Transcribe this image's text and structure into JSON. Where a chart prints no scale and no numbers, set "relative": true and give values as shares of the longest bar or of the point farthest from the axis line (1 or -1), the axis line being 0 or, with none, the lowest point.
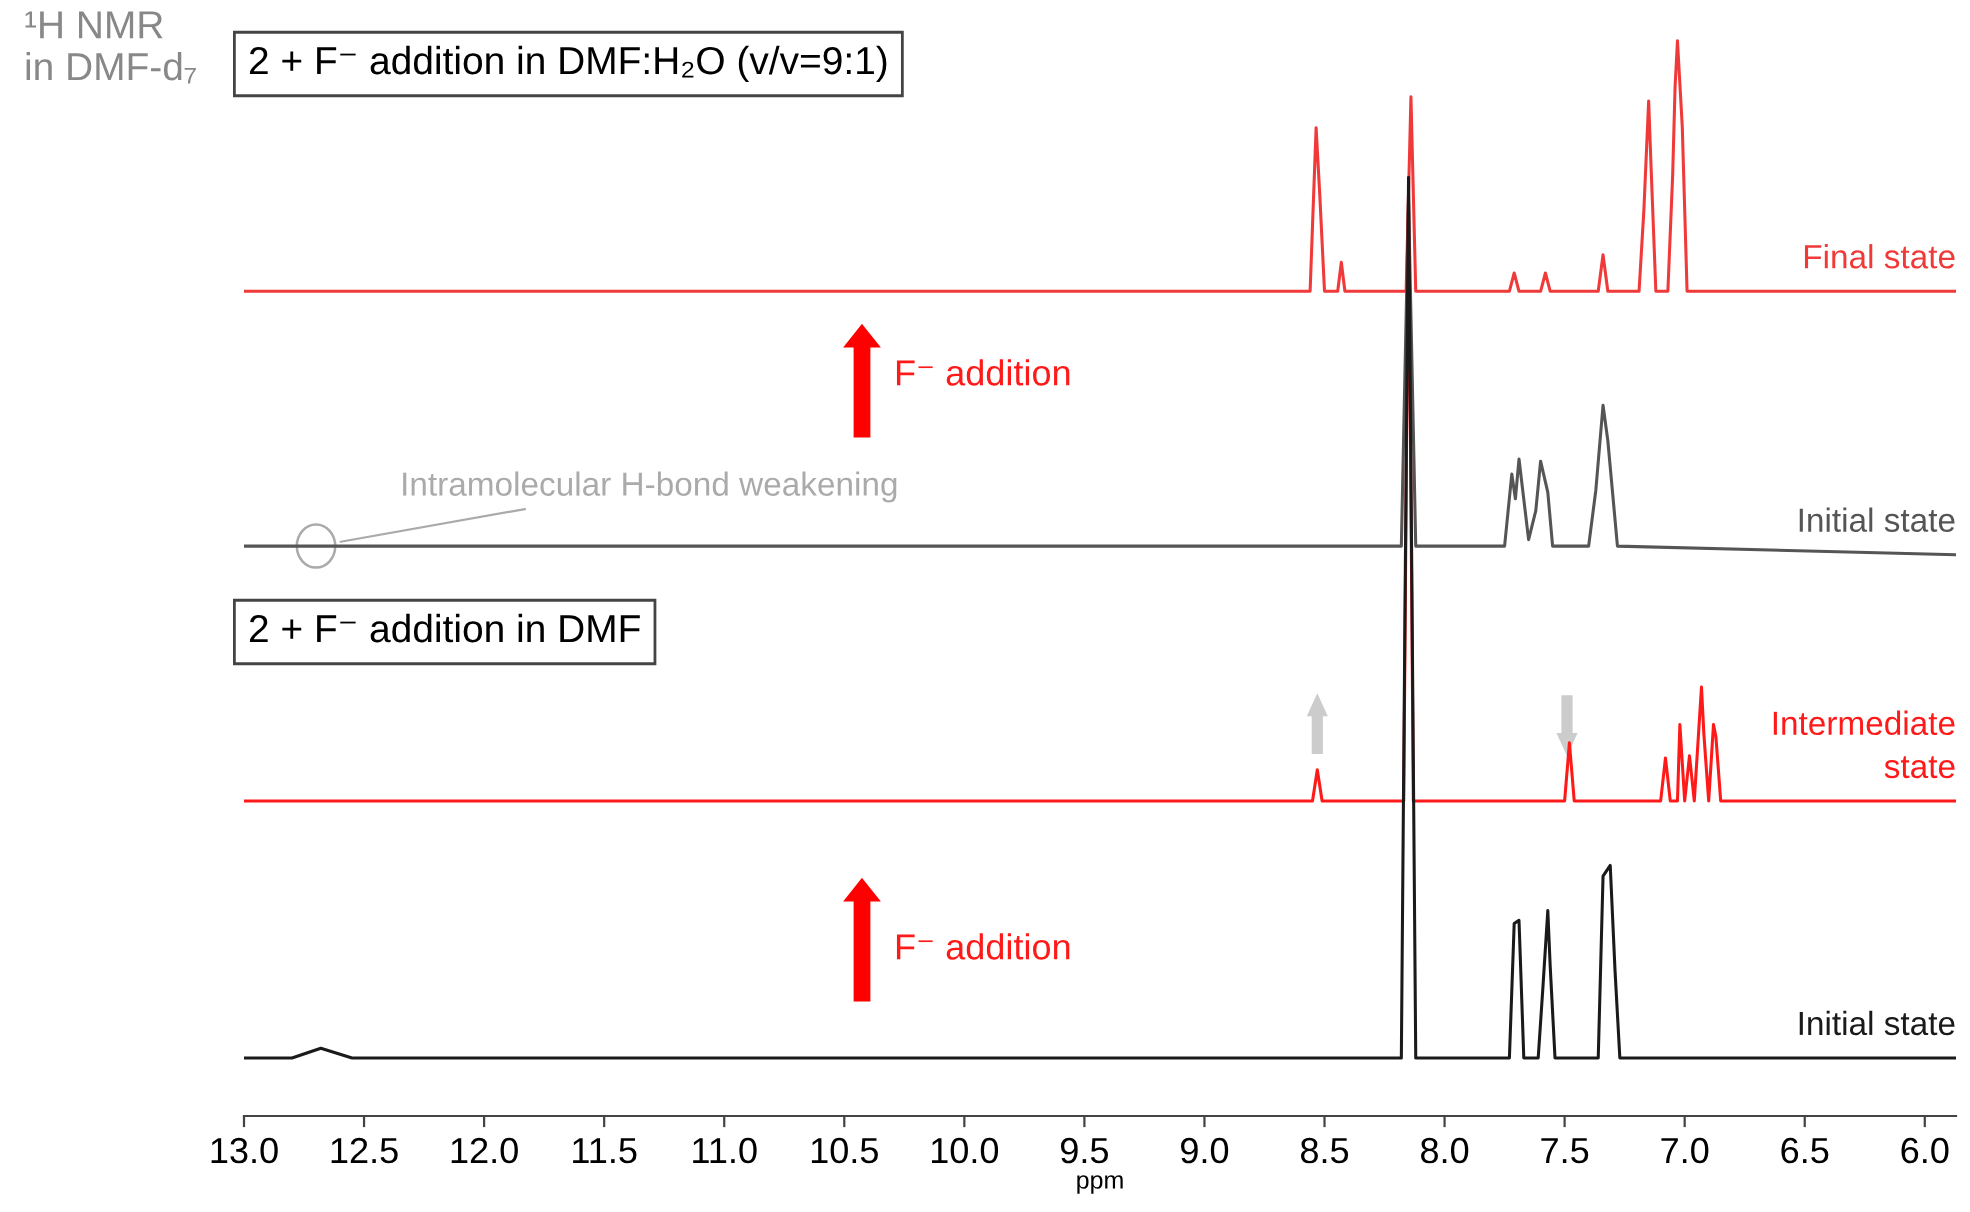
{
  "chart_data": {
    "type": "line",
    "relative": true,
    "xlabel": "ppm",
    "xlim": [
      13.0,
      5.87
    ],
    "xticks": [
      {
        "value": 13,
        "label": "13.0"
      },
      12.5,
      {
        "value": 12,
        "label": "12.0"
      },
      11.5,
      {
        "value": 11,
        "label": "11.0"
      },
      10.5,
      {
        "value": 10,
        "label": "10.0"
      },
      9.5,
      {
        "value": 9,
        "label": "9.0"
      },
      8.5,
      {
        "value": 8,
        "label": "8.0"
      },
      7.5,
      {
        "value": 7,
        "label": "7.0"
      },
      6.5,
      {
        "value": 6,
        "label": "6.0"
      }
    ],
    "grid": false,
    "marker": "none",
    "line_style": "solid",
    "series": [
      {
        "name": "Final state",
        "color": "#f03a3a",
        "x": [
          13.0,
          8.56,
          8.535,
          8.52,
          8.5,
          8.445,
          8.43,
          8.415,
          8.16,
          8.14,
          8.12,
          7.73,
          7.71,
          7.69,
          7.6,
          7.58,
          7.56,
          7.36,
          7.34,
          7.32,
          7.19,
          7.17,
          7.15,
          7.14,
          7.12,
          7.07,
          7.05,
          7.04,
          7.03,
          7.01,
          6.99,
          5.87
        ],
        "values": [
          0.767,
          0.767,
          0.919,
          0.858,
          0.767,
          0.767,
          0.794,
          0.767,
          0.767,
          0.948,
          0.767,
          0.767,
          0.784,
          0.767,
          0.767,
          0.784,
          0.767,
          0.767,
          0.801,
          0.767,
          0.767,
          0.842,
          0.944,
          0.883,
          0.767,
          0.767,
          0.875,
          0.957,
          1.0,
          0.92,
          0.767,
          0.767
        ]
      },
      {
        "name": "Initial state",
        "color": "#555555",
        "x": [
          13.0,
          8.18,
          8.15,
          8.12,
          7.75,
          7.72,
          7.705,
          7.69,
          7.65,
          7.62,
          7.6,
          7.57,
          7.55,
          7.4,
          7.37,
          7.34,
          7.32,
          7.28,
          5.87
        ],
        "values": [
          0.53,
          0.53,
          0.851,
          0.53,
          0.53,
          0.597,
          0.574,
          0.611,
          0.536,
          0.563,
          0.609,
          0.58,
          0.53,
          0.53,
          0.582,
          0.661,
          0.628,
          0.53,
          0.522
        ]
      },
      {
        "name": "Intermediate\nstate",
        "color": "#ff1a1a",
        "x": [
          13.0,
          8.55,
          8.53,
          8.51,
          8.17,
          8.15,
          8.13,
          7.5,
          7.48,
          7.46,
          7.1,
          7.08,
          7.06,
          7.03,
          7.02,
          7.0,
          6.98,
          6.96,
          6.93,
          6.92,
          6.9,
          6.88,
          6.87,
          6.85,
          5.87
        ],
        "values": [
          0.293,
          0.293,
          0.322,
          0.293,
          0.293,
          0.858,
          0.293,
          0.293,
          0.347,
          0.293,
          0.293,
          0.333,
          0.293,
          0.293,
          0.364,
          0.293,
          0.335,
          0.293,
          0.399,
          0.355,
          0.293,
          0.364,
          0.353,
          0.293,
          0.293
        ]
      },
      {
        "name": "Initial state",
        "color": "#1a1a1a",
        "x": [
          13.0,
          12.8,
          12.68,
          12.55,
          8.18,
          8.15,
          8.12,
          7.73,
          7.71,
          7.69,
          7.67,
          7.61,
          7.59,
          7.57,
          7.56,
          7.54,
          7.36,
          7.34,
          7.31,
          7.29,
          7.27,
          5.87
        ],
        "values": [
          0.054,
          0.054,
          0.063,
          0.054,
          0.054,
          0.873,
          0.054,
          0.054,
          0.179,
          0.182,
          0.054,
          0.054,
          0.121,
          0.191,
          0.139,
          0.054,
          0.054,
          0.223,
          0.233,
          0.135,
          0.054,
          0.054
        ]
      }
    ],
    "annotations": [
      "¹H NMR\nin DMF-d₇",
      "2 + F⁻ addition in DMF:H₂O (v/v=9:1)",
      "2 + F⁻ addition in DMF",
      "F⁻ addition",
      "F⁻ addition",
      {
        "text": "Intramolecular H-bond weakening",
        "x": 12.7,
        "y": 0.53
      }
    ]
  }
}
